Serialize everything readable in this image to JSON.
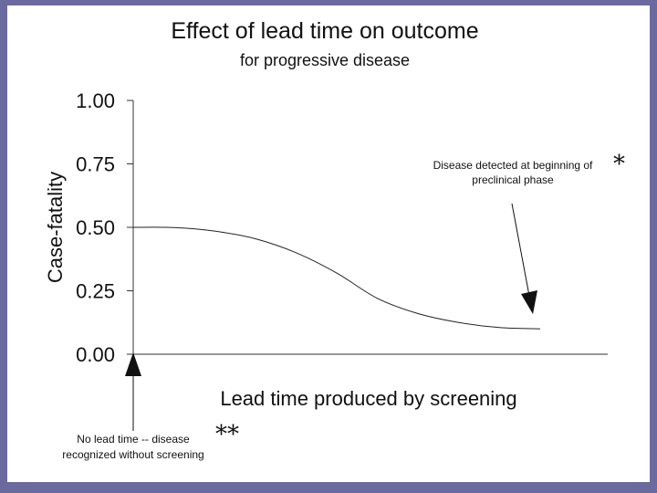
{
  "chart_data": {
    "type": "line",
    "title": "Effect of lead time on outcome",
    "subtitle": "for progressive disease",
    "ylabel": "Case-fatality",
    "xlabel": "Lead time produced by screening",
    "ylim": [
      0,
      1
    ],
    "yticks": [
      "0.00",
      "0.25",
      "0.50",
      "0.75",
      "1.00"
    ],
    "ytick_values": [
      0,
      0.25,
      0.5,
      0.75,
      1.0
    ],
    "xlim": [
      0,
      1
    ],
    "series": [
      {
        "name": "case-fatality",
        "x": [
          0.0,
          0.1,
          0.2,
          0.3,
          0.4,
          0.5,
          0.6,
          0.7,
          0.8,
          0.9,
          1.0
        ],
        "y": [
          0.5,
          0.499,
          0.485,
          0.455,
          0.4,
          0.32,
          0.22,
          0.16,
          0.125,
          0.105,
          0.1
        ]
      }
    ],
    "annotations": {
      "right_text": [
        "Disease detected at beginning of",
        "preclinical phase"
      ],
      "right_marker": "*",
      "left_text": [
        "No lead time -- disease",
        "recognized without screening"
      ],
      "left_marker": "**"
    }
  }
}
